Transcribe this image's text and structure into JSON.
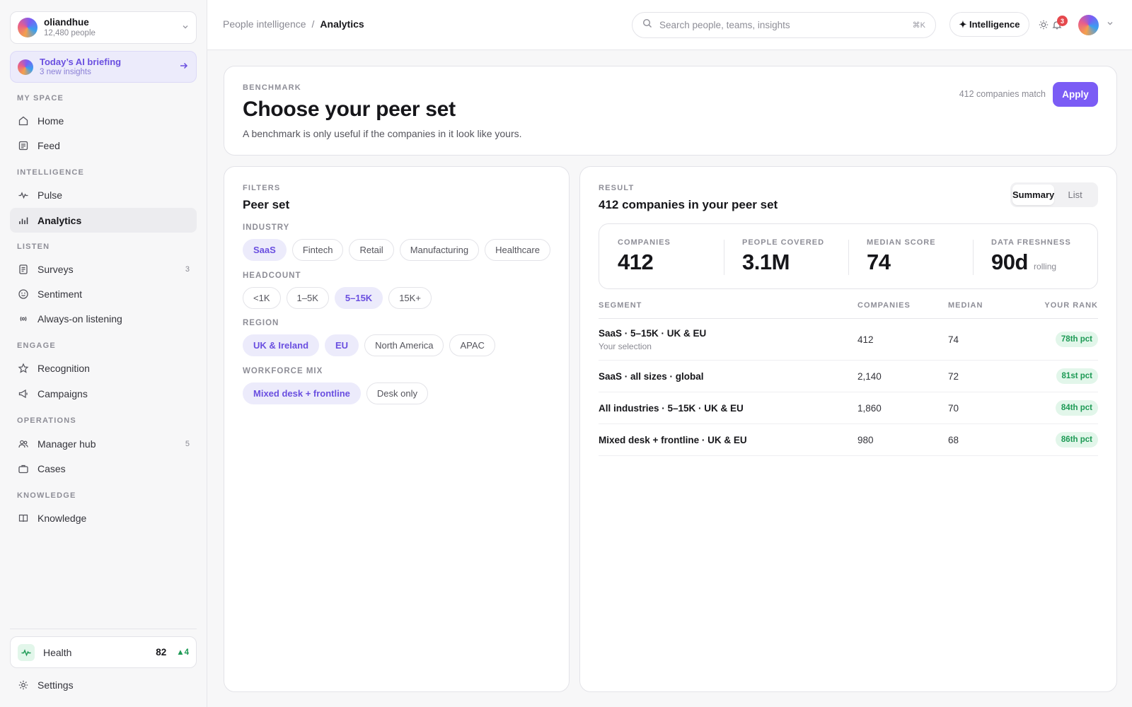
{
  "org": {
    "name": "oliandhue",
    "people": "12,480 people"
  },
  "briefing": {
    "title": "Today’s AI briefing",
    "subtitle": "3 new insights"
  },
  "nav": {
    "sections": {
      "my_space": "MY SPACE",
      "intelligence": "INTELLIGENCE",
      "listen": "LISTEN",
      "engage": "ENGAGE",
      "operations": "OPERATIONS",
      "knowledge": "KNOWLEDGE"
    },
    "items": {
      "home": "Home",
      "feed": "Feed",
      "pulse": "Pulse",
      "analytics": "Analytics",
      "surveys": "Surveys",
      "surveys_badge": "3",
      "sentiment": "Sentiment",
      "listening": "Always-on listening",
      "recognition": "Recognition",
      "campaigns": "Campaigns",
      "manager_hub": "Manager hub",
      "manager_hub_badge": "5",
      "cases": "Cases",
      "knowledge": "Knowledge"
    }
  },
  "health": {
    "label": "Health",
    "value": "82",
    "delta": "▲4"
  },
  "settings": {
    "label": "Settings"
  },
  "header": {
    "crumb_parent": "People intelligence",
    "crumb_sep": "/",
    "crumb_current": "Analytics",
    "search_placeholder": "Search people, teams, insights",
    "search_shortcut": "⌘K",
    "intelligence_label": "✦ Intelligence",
    "notif_count": "3"
  },
  "benchmark": {
    "eyebrow": "BENCHMARK",
    "title": "Choose your peer set",
    "subtitle": "A benchmark is only useful if the companies in it look like yours.",
    "match": "412 companies match",
    "apply": "Apply"
  },
  "filters": {
    "eyebrow": "FILTERS",
    "title": "Peer set",
    "groups": {
      "industry": {
        "label": "INDUSTRY",
        "chips": [
          "SaaS",
          "Fintech",
          "Retail",
          "Manufacturing",
          "Healthcare"
        ]
      },
      "headcount": {
        "label": "HEADCOUNT",
        "chips": [
          "<1K",
          "1–5K",
          "5–15K",
          "15K+"
        ]
      },
      "region": {
        "label": "REGION",
        "chips": [
          "UK & Ireland",
          "EU",
          "North America",
          "APAC"
        ]
      },
      "workforce": {
        "label": "WORKFORCE MIX",
        "chips": [
          "Mixed desk + frontline",
          "Desk only"
        ]
      }
    }
  },
  "result": {
    "eyebrow": "RESULT",
    "title": "412 companies in your peer set",
    "view_summary": "Summary",
    "view_list": "List",
    "stats": {
      "companies": {
        "label": "COMPANIES",
        "value": "412"
      },
      "people": {
        "label": "PEOPLE COVERED",
        "value": "3.1M"
      },
      "median": {
        "label": "MEDIAN SCORE",
        "value": "74"
      },
      "freshness": {
        "label": "DATA FRESHNESS",
        "value": "90d",
        "unit": "rolling"
      }
    },
    "table": {
      "headers": {
        "segment": "SEGMENT",
        "companies": "COMPANIES",
        "median": "MEDIAN",
        "rank": "YOUR RANK"
      },
      "rows": [
        {
          "segment": "SaaS · 5–15K · UK & EU",
          "note": "Your selection",
          "companies": "412",
          "median": "74",
          "rank": "78th pct"
        },
        {
          "segment": "SaaS · all sizes · global",
          "companies": "2,140",
          "median": "72",
          "rank": "81st pct"
        },
        {
          "segment": "All industries · 5–15K · UK & EU",
          "companies": "1,860",
          "median": "70",
          "rank": "84th pct"
        },
        {
          "segment": "Mixed desk + frontline · UK & EU",
          "companies": "980",
          "median": "68",
          "rank": "86th pct"
        }
      ]
    }
  }
}
